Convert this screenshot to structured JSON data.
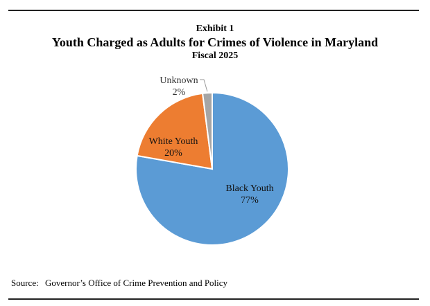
{
  "chart_data": {
    "type": "pie",
    "exhibit": "Exhibit 1",
    "title": "Youth Charged as Adults for Crimes of Violence in Maryland",
    "subtitle": "Fiscal 2025",
    "slices": [
      {
        "label": "Black Youth",
        "value": 77,
        "value_label": "77%",
        "color": "#5b9bd5"
      },
      {
        "label": "White Youth",
        "value": 20,
        "value_label": "20%",
        "color": "#ed7d31"
      },
      {
        "label": "Unknown",
        "value": 2,
        "value_label": "2%",
        "color": "#a5a5a5"
      }
    ],
    "source_label": "Source:",
    "source_text": "Governor’s Office of Crime Prevention and Policy"
  }
}
